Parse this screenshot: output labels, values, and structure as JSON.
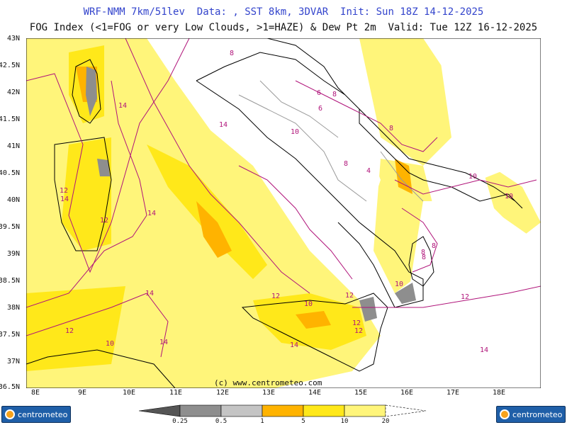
{
  "header": {
    "line1": "WRF-NMM 7km/51lev  Data: , SST 8km, 3DVAR  Init: Sun 18Z 14-12-2025",
    "line2": "FOG Index (<1=FOG or very Low Clouds, >1=HAZE) & Dew Pt 2m  Valid: Tue 12Z 16-12-2025"
  },
  "map": {
    "lat_labels": [
      "43N",
      "42.5N",
      "42N",
      "41.5N",
      "41N",
      "40.5N",
      "40N",
      "39.5N",
      "39N",
      "38.5N",
      "38N",
      "37.5N",
      "37N",
      "36.5N"
    ],
    "lon_labels": [
      "8E",
      "9E",
      "10E",
      "11E",
      "12E",
      "13E",
      "14E",
      "15E",
      "16E",
      "17E",
      "18E"
    ],
    "watermark": "(c) www.centrometeo.com",
    "contour_labels": [
      "14",
      "14",
      "12",
      "14",
      "12",
      "12",
      "14",
      "14",
      "14",
      "12",
      "10",
      "10",
      "14",
      "14",
      "12",
      "12",
      "12",
      "10",
      "12",
      "12",
      "12",
      "10",
      "8",
      "8",
      "10",
      "4",
      "8",
      "6",
      "8",
      "10",
      "10",
      "8",
      "6",
      "8",
      "12",
      "14"
    ]
  },
  "colorbar": {
    "labels": [
      "0.25",
      "0.5",
      "1",
      "5",
      "10",
      "20"
    ],
    "colors": [
      "#555555",
      "#8e8e8e",
      "#c4c4c4",
      "#ffb300",
      "#ffe81a",
      "#fff57a",
      "#ffffff"
    ]
  },
  "logos": {
    "left": "centrometeo",
    "right": "centrometeo"
  },
  "colors": {
    "contour": "#b0147a",
    "coast": "#000000",
    "border": "#9a9a9a"
  }
}
